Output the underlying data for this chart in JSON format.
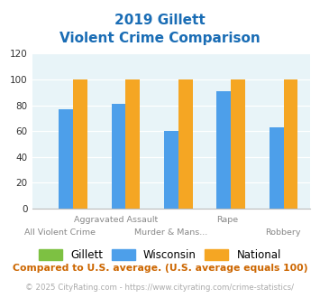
{
  "title_line1": "2019 Gillett",
  "title_line2": "Violent Crime Comparison",
  "categories": [
    "All Violent Crime",
    "Aggravated Assault",
    "Murder & Mans...",
    "Rape",
    "Robbery"
  ],
  "gillett": [
    0,
    0,
    0,
    0,
    0
  ],
  "wisconsin": [
    77,
    81,
    60,
    91,
    63
  ],
  "national": [
    100,
    100,
    100,
    100,
    100
  ],
  "colors": {
    "gillett": "#7dc142",
    "wisconsin": "#4d9fea",
    "national": "#f5a623"
  },
  "ylim": [
    0,
    120
  ],
  "yticks": [
    0,
    20,
    40,
    60,
    80,
    100,
    120
  ],
  "top_labels": [
    "",
    "Aggravated Assault",
    "",
    "Rape",
    ""
  ],
  "bottom_labels": [
    "All Violent Crime",
    "",
    "Murder & Mans...",
    "",
    "Robbery"
  ],
  "footnote": "Compared to U.S. average. (U.S. average equals 100)",
  "copyright": "© 2025 CityRating.com - https://www.cityrating.com/crime-statistics/",
  "bg_color": "#e8f4f8",
  "title_color": "#1a6db5",
  "footnote_color": "#cc6600",
  "copyright_color": "#aaaaaa"
}
